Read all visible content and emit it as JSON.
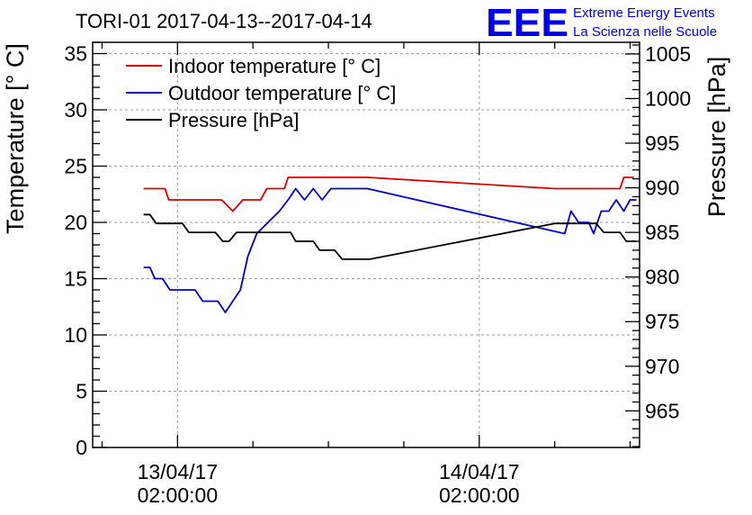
{
  "title": "TORI-01 2017-04-13--2017-04-14",
  "brand": {
    "logo_text": "EEE",
    "line1": "Extreme Energy Events",
    "line2": "La Scienza nelle Scuole",
    "color": "#0000ee"
  },
  "chart_data": {
    "type": "line",
    "title": "TORI-01 2017-04-13--2017-04-14",
    "x_axis": {
      "type": "time",
      "range_hours": [
        -6.75,
        36.75
      ],
      "major_ticks": [
        {
          "hour": 0,
          "date": "13/04/17",
          "time": "02:00:00"
        },
        {
          "hour": 24,
          "date": "14/04/17",
          "time": "02:00:00"
        }
      ],
      "grid": true
    },
    "y_left": {
      "label": "Temperature [° C]",
      "ylim": [
        0,
        36
      ],
      "ticks": [
        0,
        5,
        10,
        15,
        20,
        25,
        30,
        35
      ],
      "grid": true
    },
    "y_right": {
      "label": "Pressure [hPa]",
      "ylim": [
        960.9,
        1006.3
      ],
      "ticks": [
        965,
        970,
        975,
        980,
        985,
        990,
        995,
        1000,
        1005
      ]
    },
    "legend": {
      "placement": "top-left",
      "entries": [
        {
          "label": "Indoor temperature [° C]",
          "color": "#dd0000"
        },
        {
          "label": "Outdoor temperature [° C]",
          "color": "#0000cc"
        },
        {
          "label": "Pressure [hPa]",
          "color": "#000000"
        }
      ]
    },
    "series": [
      {
        "name": "Indoor temperature [° C]",
        "axis": "left",
        "color": "#dd0000",
        "points": [
          [
            -2.7,
            23
          ],
          [
            -1,
            23
          ],
          [
            -0.7,
            22
          ],
          [
            3.5,
            22
          ],
          [
            4.4,
            21
          ],
          [
            5.2,
            22
          ],
          [
            6.6,
            22
          ],
          [
            7.1,
            23
          ],
          [
            8.5,
            23
          ],
          [
            8.8,
            24
          ],
          [
            15.1,
            24
          ],
          [
            30.0,
            23
          ],
          [
            35.2,
            23
          ],
          [
            35.5,
            24
          ],
          [
            36.3,
            24
          ]
        ]
      },
      {
        "name": "Outdoor temperature [° C]",
        "axis": "left",
        "color": "#0000cc",
        "points": [
          [
            -2.7,
            16
          ],
          [
            -2.2,
            16
          ],
          [
            -1.8,
            15
          ],
          [
            -1.2,
            15
          ],
          [
            -0.6,
            14
          ],
          [
            1.4,
            14
          ],
          [
            2.0,
            13
          ],
          [
            3.2,
            13
          ],
          [
            3.8,
            12
          ],
          [
            4.4,
            13
          ],
          [
            5.0,
            14
          ],
          [
            5.6,
            17
          ],
          [
            6.3,
            19
          ],
          [
            7.2,
            20
          ],
          [
            8.1,
            21
          ],
          [
            8.8,
            22
          ],
          [
            9.4,
            23
          ],
          [
            10.1,
            22
          ],
          [
            10.8,
            23
          ],
          [
            11.5,
            22
          ],
          [
            12.2,
            23
          ],
          [
            15.1,
            23
          ],
          [
            30.8,
            19
          ],
          [
            31.3,
            21
          ],
          [
            31.9,
            20
          ],
          [
            32.7,
            20
          ],
          [
            33.1,
            19
          ],
          [
            33.7,
            21
          ],
          [
            34.3,
            21
          ],
          [
            34.9,
            22
          ],
          [
            35.5,
            21
          ],
          [
            36.0,
            22
          ],
          [
            36.5,
            22
          ]
        ]
      },
      {
        "name": "Pressure [hPa]",
        "axis": "right",
        "color": "#000000",
        "points": [
          [
            -2.7,
            987
          ],
          [
            -2.2,
            987
          ],
          [
            -1.7,
            986
          ],
          [
            0.4,
            986
          ],
          [
            0.9,
            985
          ],
          [
            3.0,
            985
          ],
          [
            3.6,
            984
          ],
          [
            4.1,
            984
          ],
          [
            4.7,
            985
          ],
          [
            9.0,
            985
          ],
          [
            9.4,
            984
          ],
          [
            10.8,
            984
          ],
          [
            11.3,
            983
          ],
          [
            12.5,
            983
          ],
          [
            13.1,
            982
          ],
          [
            15.3,
            982
          ],
          [
            30.0,
            986
          ],
          [
            33.3,
            986
          ],
          [
            33.9,
            985
          ],
          [
            35.2,
            985
          ],
          [
            35.7,
            984
          ],
          [
            36.5,
            984
          ]
        ]
      }
    ]
  }
}
